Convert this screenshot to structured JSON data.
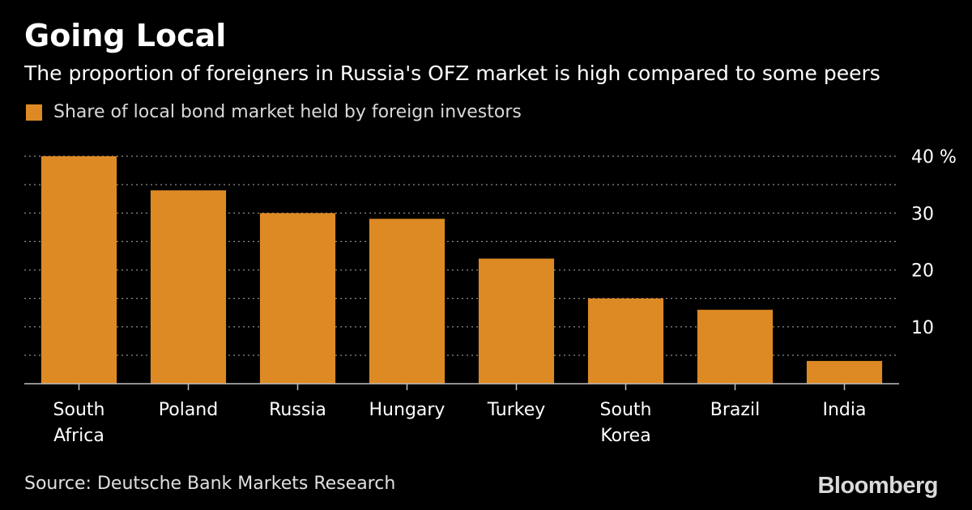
{
  "header": {
    "title": "Going Local",
    "subtitle": "The proportion of foreigners in Russia's OFZ market is high compared to some peers"
  },
  "footer": {
    "source": "Source: Deutsche Bank Markets Research",
    "brand": "Bloomberg"
  },
  "colors": {
    "bar": "#dd8a24",
    "background": "#000000",
    "grid": "#8c8c8c",
    "axis": "#bfbfbf"
  },
  "chart_data": {
    "type": "bar",
    "categories": [
      "South Africa",
      "Poland",
      "Russia",
      "Hungary",
      "Turkey",
      "South Korea",
      "Brazil",
      "India"
    ],
    "category_lines": [
      [
        "South",
        "Africa"
      ],
      [
        "Poland"
      ],
      [
        "Russia"
      ],
      [
        "Hungary"
      ],
      [
        "Turkey"
      ],
      [
        "South",
        "Korea"
      ],
      [
        "Brazil"
      ],
      [
        "India"
      ]
    ],
    "series": [
      {
        "name": "Share of local bond market held by foreign investors",
        "values": [
          40,
          34,
          30,
          29,
          22,
          15,
          13,
          4
        ]
      }
    ],
    "ylim": [
      0,
      40
    ],
    "yticks": [
      10,
      20,
      30,
      40
    ],
    "ytick_labels": [
      "10",
      "20",
      "30",
      "40 %"
    ],
    "gridlines": [
      5,
      10,
      15,
      20,
      25,
      30,
      35,
      40
    ],
    "grid": true,
    "y_axis_position": "right",
    "legend_position": "top-left"
  }
}
